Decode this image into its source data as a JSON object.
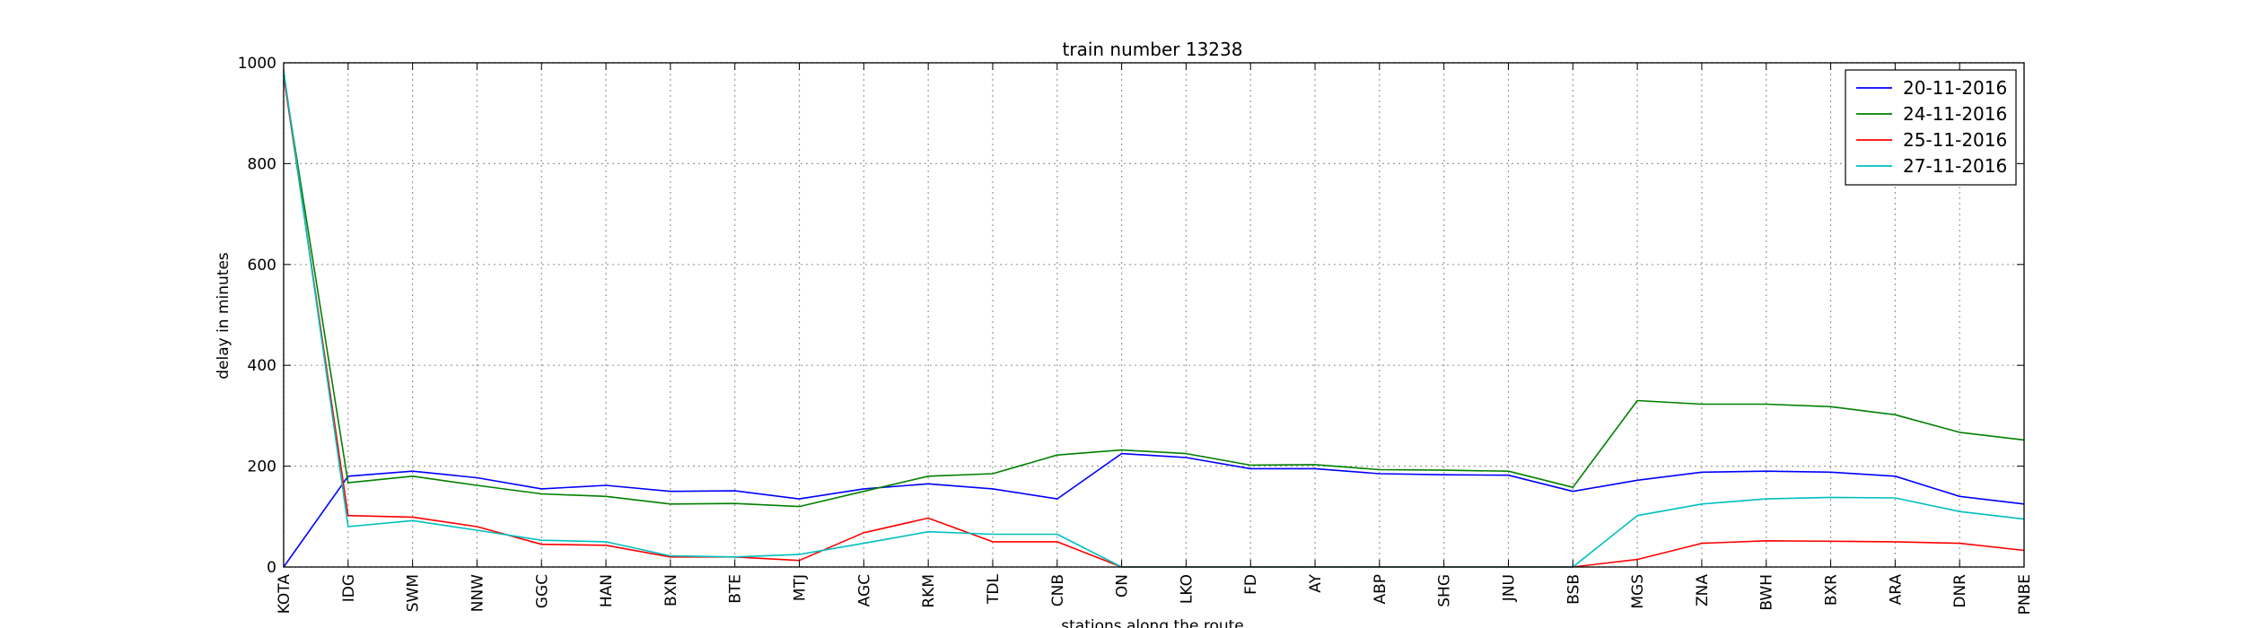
{
  "chart_data": {
    "type": "line",
    "title": "train number 13238",
    "xlabel": "stations along the route",
    "ylabel": "delay in minutes",
    "ylim": [
      0,
      1000
    ],
    "yticks": [
      0,
      200,
      400,
      600,
      800,
      1000
    ],
    "grid": true,
    "legend_position": "top-right",
    "categories": [
      "KOTA",
      "IDG",
      "SWM",
      "NNW",
      "GGC",
      "HAN",
      "BXN",
      "BTE",
      "MTJ",
      "AGC",
      "RKM",
      "TDL",
      "CNB",
      "ON",
      "LKO",
      "FD",
      "AY",
      "ABP",
      "SHG",
      "JNU",
      "BSB",
      "MGS",
      "ZNA",
      "BWH",
      "BXR",
      "ARA",
      "DNR",
      "PNBE"
    ],
    "series": [
      {
        "name": "20-11-2016",
        "color": "#0000ff",
        "values": [
          0,
          180,
          190,
          177,
          155,
          162,
          150,
          151,
          135,
          155,
          165,
          155,
          135,
          225,
          217,
          195,
          195,
          185,
          183,
          182,
          150,
          172,
          188,
          190,
          188,
          180,
          140,
          125
        ]
      },
      {
        "name": "24-11-2016",
        "color": "#008000",
        "values": [
          975,
          167,
          180,
          162,
          145,
          140,
          125,
          126,
          120,
          150,
          180,
          185,
          222,
          232,
          225,
          202,
          203,
          193,
          192,
          190,
          158,
          330,
          323,
          323,
          318,
          302,
          267,
          252
        ]
      },
      {
        "name": "25-11-2016",
        "color": "#ff0000",
        "values": [
          975,
          102,
          99,
          80,
          45,
          43,
          20,
          20,
          13,
          68,
          97,
          50,
          50,
          0,
          0,
          0,
          0,
          0,
          0,
          0,
          0,
          15,
          47,
          52,
          51,
          50,
          47,
          33
        ]
      },
      {
        "name": "27-11-2016",
        "color": "#00bfbf",
        "values": [
          985,
          80,
          92,
          73,
          53,
          50,
          22,
          20,
          25,
          47,
          70,
          65,
          65,
          0,
          0,
          0,
          0,
          0,
          0,
          0,
          0,
          102,
          125,
          135,
          138,
          137,
          110,
          95
        ]
      }
    ]
  }
}
